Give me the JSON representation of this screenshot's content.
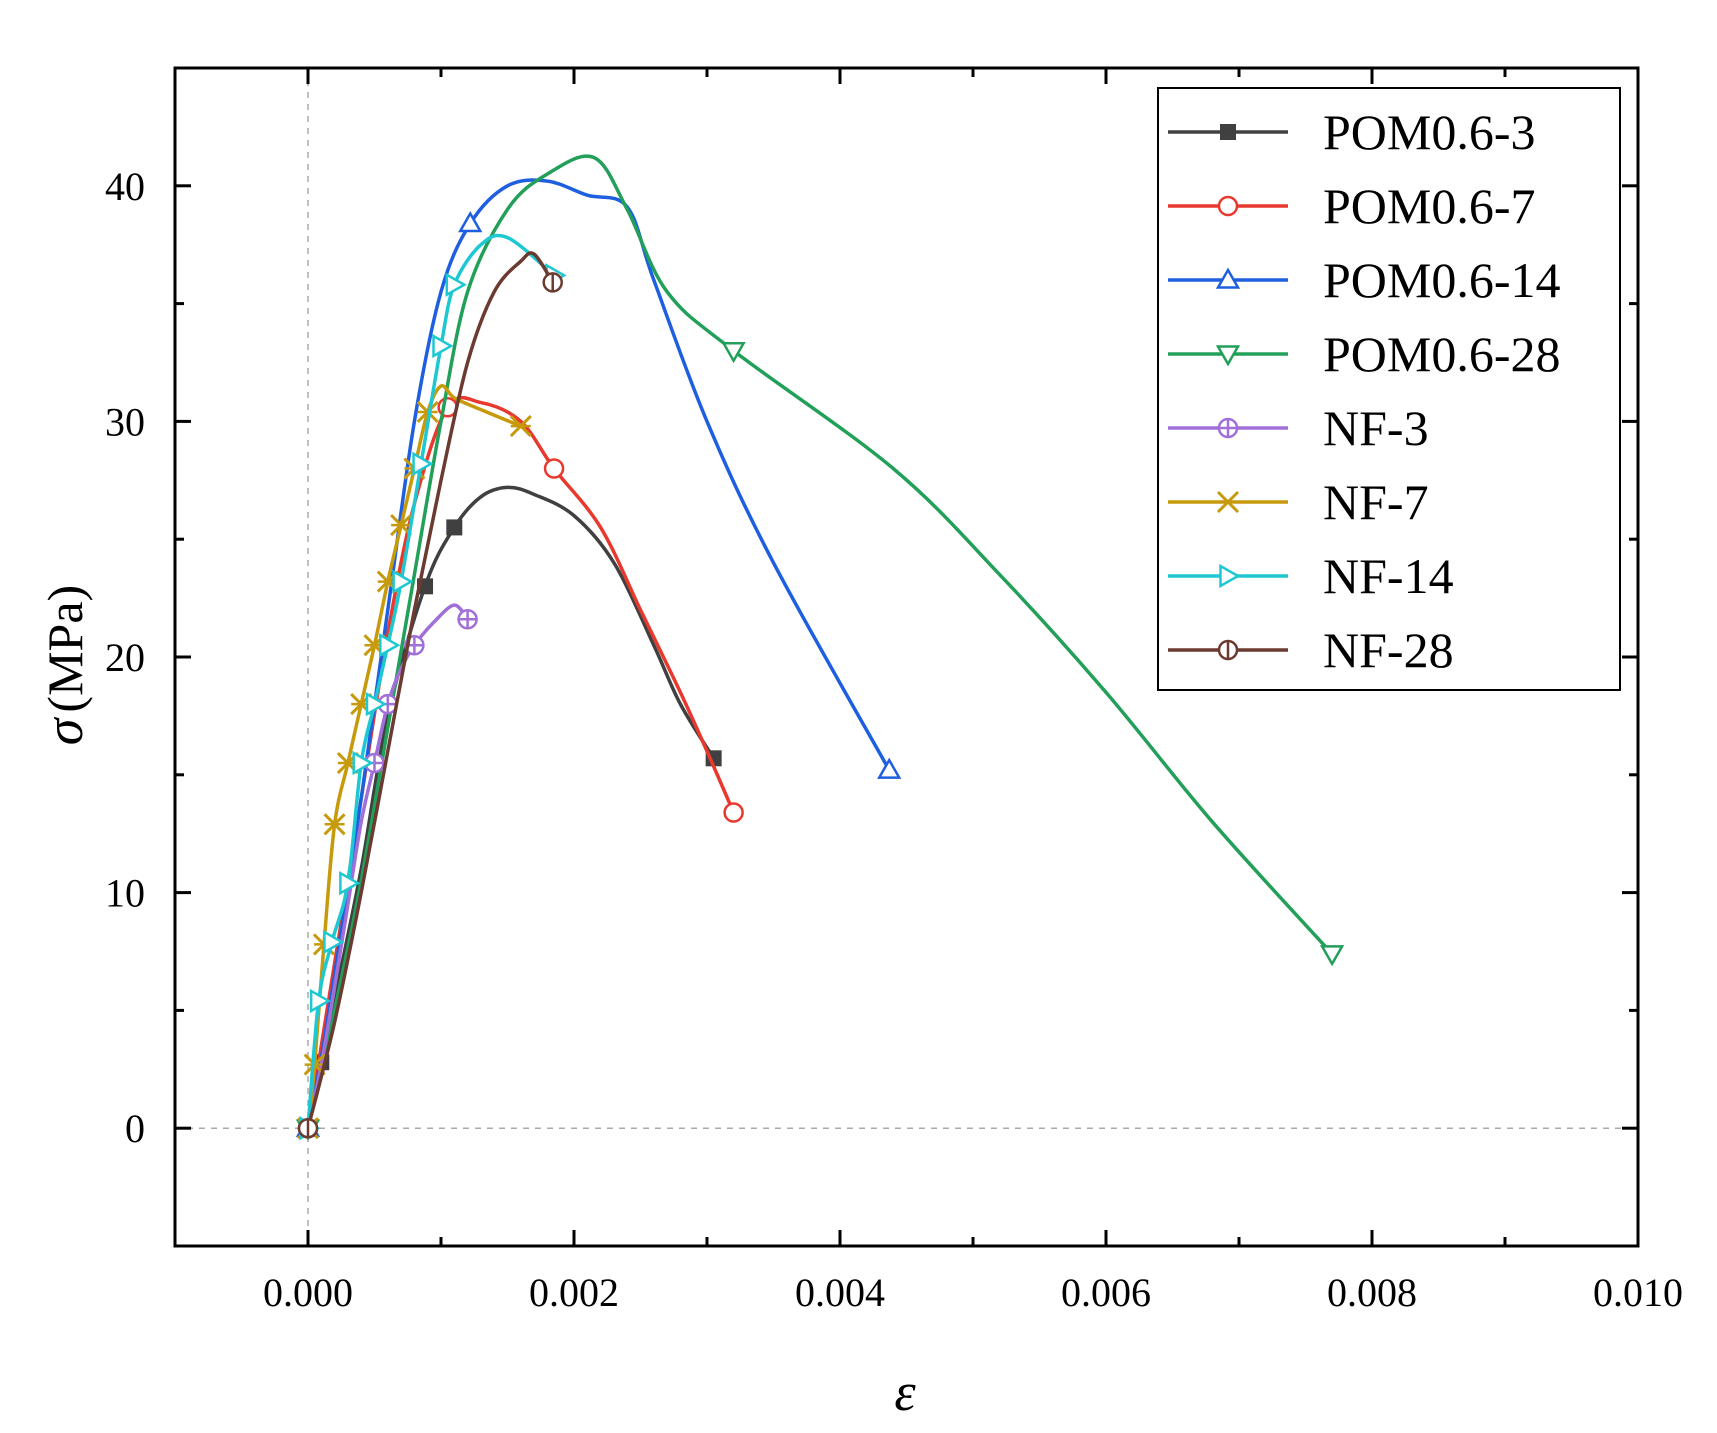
{
  "chart_data": {
    "type": "line",
    "title": "",
    "xlabel": "ε",
    "ylabel_symbol": "σ",
    "ylabel_unit": "(MPa)",
    "xlim": [
      -0.001,
      0.01
    ],
    "ylim": [
      -5,
      45
    ],
    "xticks": [
      0.0,
      0.002,
      0.004,
      0.006,
      0.008,
      0.01
    ],
    "xtick_labels": [
      "0.000",
      "0.002",
      "0.004",
      "0.006",
      "0.008",
      "0.010"
    ],
    "yticks": [
      0,
      10,
      20,
      30,
      40
    ],
    "ytick_labels": [
      "0",
      "10",
      "20",
      "30",
      "40"
    ],
    "reference_lines": {
      "x": 0,
      "y": 0
    },
    "legend_position": "top-right",
    "series": [
      {
        "name": "POM0.6-3",
        "color": "#404040",
        "marker": "square-filled",
        "x": [
          0,
          0.0001,
          0.0002,
          0.0004,
          0.0006,
          0.00088,
          0.0011,
          0.0013,
          0.0015,
          0.0017,
          0.002,
          0.0023,
          0.0026,
          0.0028,
          0.00305
        ],
        "y": [
          0,
          2.8,
          5.5,
          11.0,
          17.5,
          23.0,
          25.5,
          26.8,
          27.2,
          26.9,
          26.0,
          24.0,
          20.5,
          18.0,
          15.7
        ],
        "markers": [
          0,
          1,
          5,
          6,
          14
        ]
      },
      {
        "name": "POM0.6-7",
        "color": "#e8392e",
        "marker": "circle-open",
        "x": [
          0,
          0.0001,
          0.0002,
          0.0004,
          0.0006,
          0.0008,
          0.00105,
          0.0013,
          0.0016,
          0.00185,
          0.0022,
          0.0025,
          0.0028,
          0.003,
          0.0032
        ],
        "y": [
          0,
          3.5,
          7.0,
          14.0,
          21.0,
          26.5,
          30.6,
          30.8,
          30.0,
          28.0,
          25.5,
          22.0,
          18.5,
          16.0,
          13.4
        ],
        "markers": [
          0,
          6,
          9,
          14
        ]
      },
      {
        "name": "POM0.6-14",
        "color": "#1e5fe0",
        "marker": "triangle-up-open",
        "x": [
          0,
          0.0001,
          0.0002,
          0.0004,
          0.0006,
          0.0008,
          0.001,
          0.00122,
          0.0015,
          0.0018,
          0.0021,
          0.0024,
          0.0026,
          0.003,
          0.0035,
          0.00437
        ],
        "y": [
          0,
          3.0,
          6.5,
          14.0,
          22.0,
          30.0,
          35.5,
          38.4,
          40.0,
          40.2,
          39.6,
          39.1,
          36.0,
          30.0,
          24.0,
          15.2
        ],
        "markers": [
          0,
          7,
          15
        ]
      },
      {
        "name": "POM0.6-28",
        "color": "#22a05a",
        "marker": "triangle-down-open",
        "x": [
          0,
          0.0002,
          0.0004,
          0.0006,
          0.0008,
          0.001,
          0.0012,
          0.0015,
          0.0018,
          0.00215,
          0.0024,
          0.0027,
          0.0032,
          0.0044,
          0.0052,
          0.006,
          0.0068,
          0.0077
        ],
        "y": [
          0,
          5.0,
          10.5,
          17.0,
          23.5,
          30.0,
          35.5,
          39.0,
          40.5,
          41.2,
          39.0,
          35.5,
          33.0,
          28.0,
          23.5,
          18.5,
          13.0,
          7.4
        ],
        "markers": [
          0,
          12,
          17
        ]
      },
      {
        "name": "NF-3",
        "color": "#a070d8",
        "marker": "circle-cross-open",
        "x": [
          0,
          0.0001,
          0.0002,
          0.0003,
          0.0004,
          0.0005,
          0.0006,
          0.0007,
          0.0008,
          0.00095,
          0.0011,
          0.0012
        ],
        "y": [
          0,
          2.7,
          6.0,
          9.5,
          13.0,
          15.5,
          18.0,
          19.5,
          20.5,
          21.5,
          22.2,
          21.6
        ],
        "markers": [
          0,
          5,
          6,
          8,
          11
        ]
      },
      {
        "name": "NF-7",
        "color": "#c79a0c",
        "marker": "x-cross",
        "x": [
          0,
          5e-05,
          0.00012,
          0.0002,
          0.0003,
          0.0004,
          0.0005,
          0.0006,
          0.0007,
          0.0008,
          0.0009,
          0.001,
          0.0011,
          0.0013,
          0.0016
        ],
        "y": [
          0,
          2.7,
          7.8,
          12.9,
          15.5,
          18.0,
          20.5,
          23.2,
          25.6,
          28.0,
          30.4,
          31.5,
          31.0,
          30.5,
          29.8
        ],
        "markers": [
          0,
          1,
          2,
          3,
          4,
          5,
          6,
          7,
          8,
          9,
          10,
          14
        ]
      },
      {
        "name": "NF-14",
        "color": "#1ec8d2",
        "marker": "triangle-right-open",
        "x": [
          0,
          8e-05,
          0.00018,
          0.0003,
          0.0004,
          0.0005,
          0.0006,
          0.0007,
          0.00085,
          0.001,
          0.0011,
          0.0013,
          0.0015,
          0.00185
        ],
        "y": [
          0,
          5.4,
          7.9,
          10.4,
          15.5,
          18.0,
          20.5,
          23.2,
          28.2,
          33.2,
          35.8,
          37.5,
          37.8,
          36.2
        ],
        "markers": [
          0,
          1,
          2,
          3,
          4,
          5,
          6,
          7,
          8,
          9,
          10,
          13
        ]
      },
      {
        "name": "NF-28",
        "color": "#6b3a30",
        "marker": "circle-bar-open",
        "x": [
          0,
          0.0002,
          0.0004,
          0.0006,
          0.0008,
          0.001,
          0.0012,
          0.0014,
          0.0016,
          0.0017,
          0.00184
        ],
        "y": [
          0,
          4.5,
          10.0,
          16.0,
          22.0,
          27.5,
          32.5,
          35.5,
          36.8,
          37.1,
          35.9
        ],
        "markers": [
          0,
          10
        ]
      }
    ]
  }
}
